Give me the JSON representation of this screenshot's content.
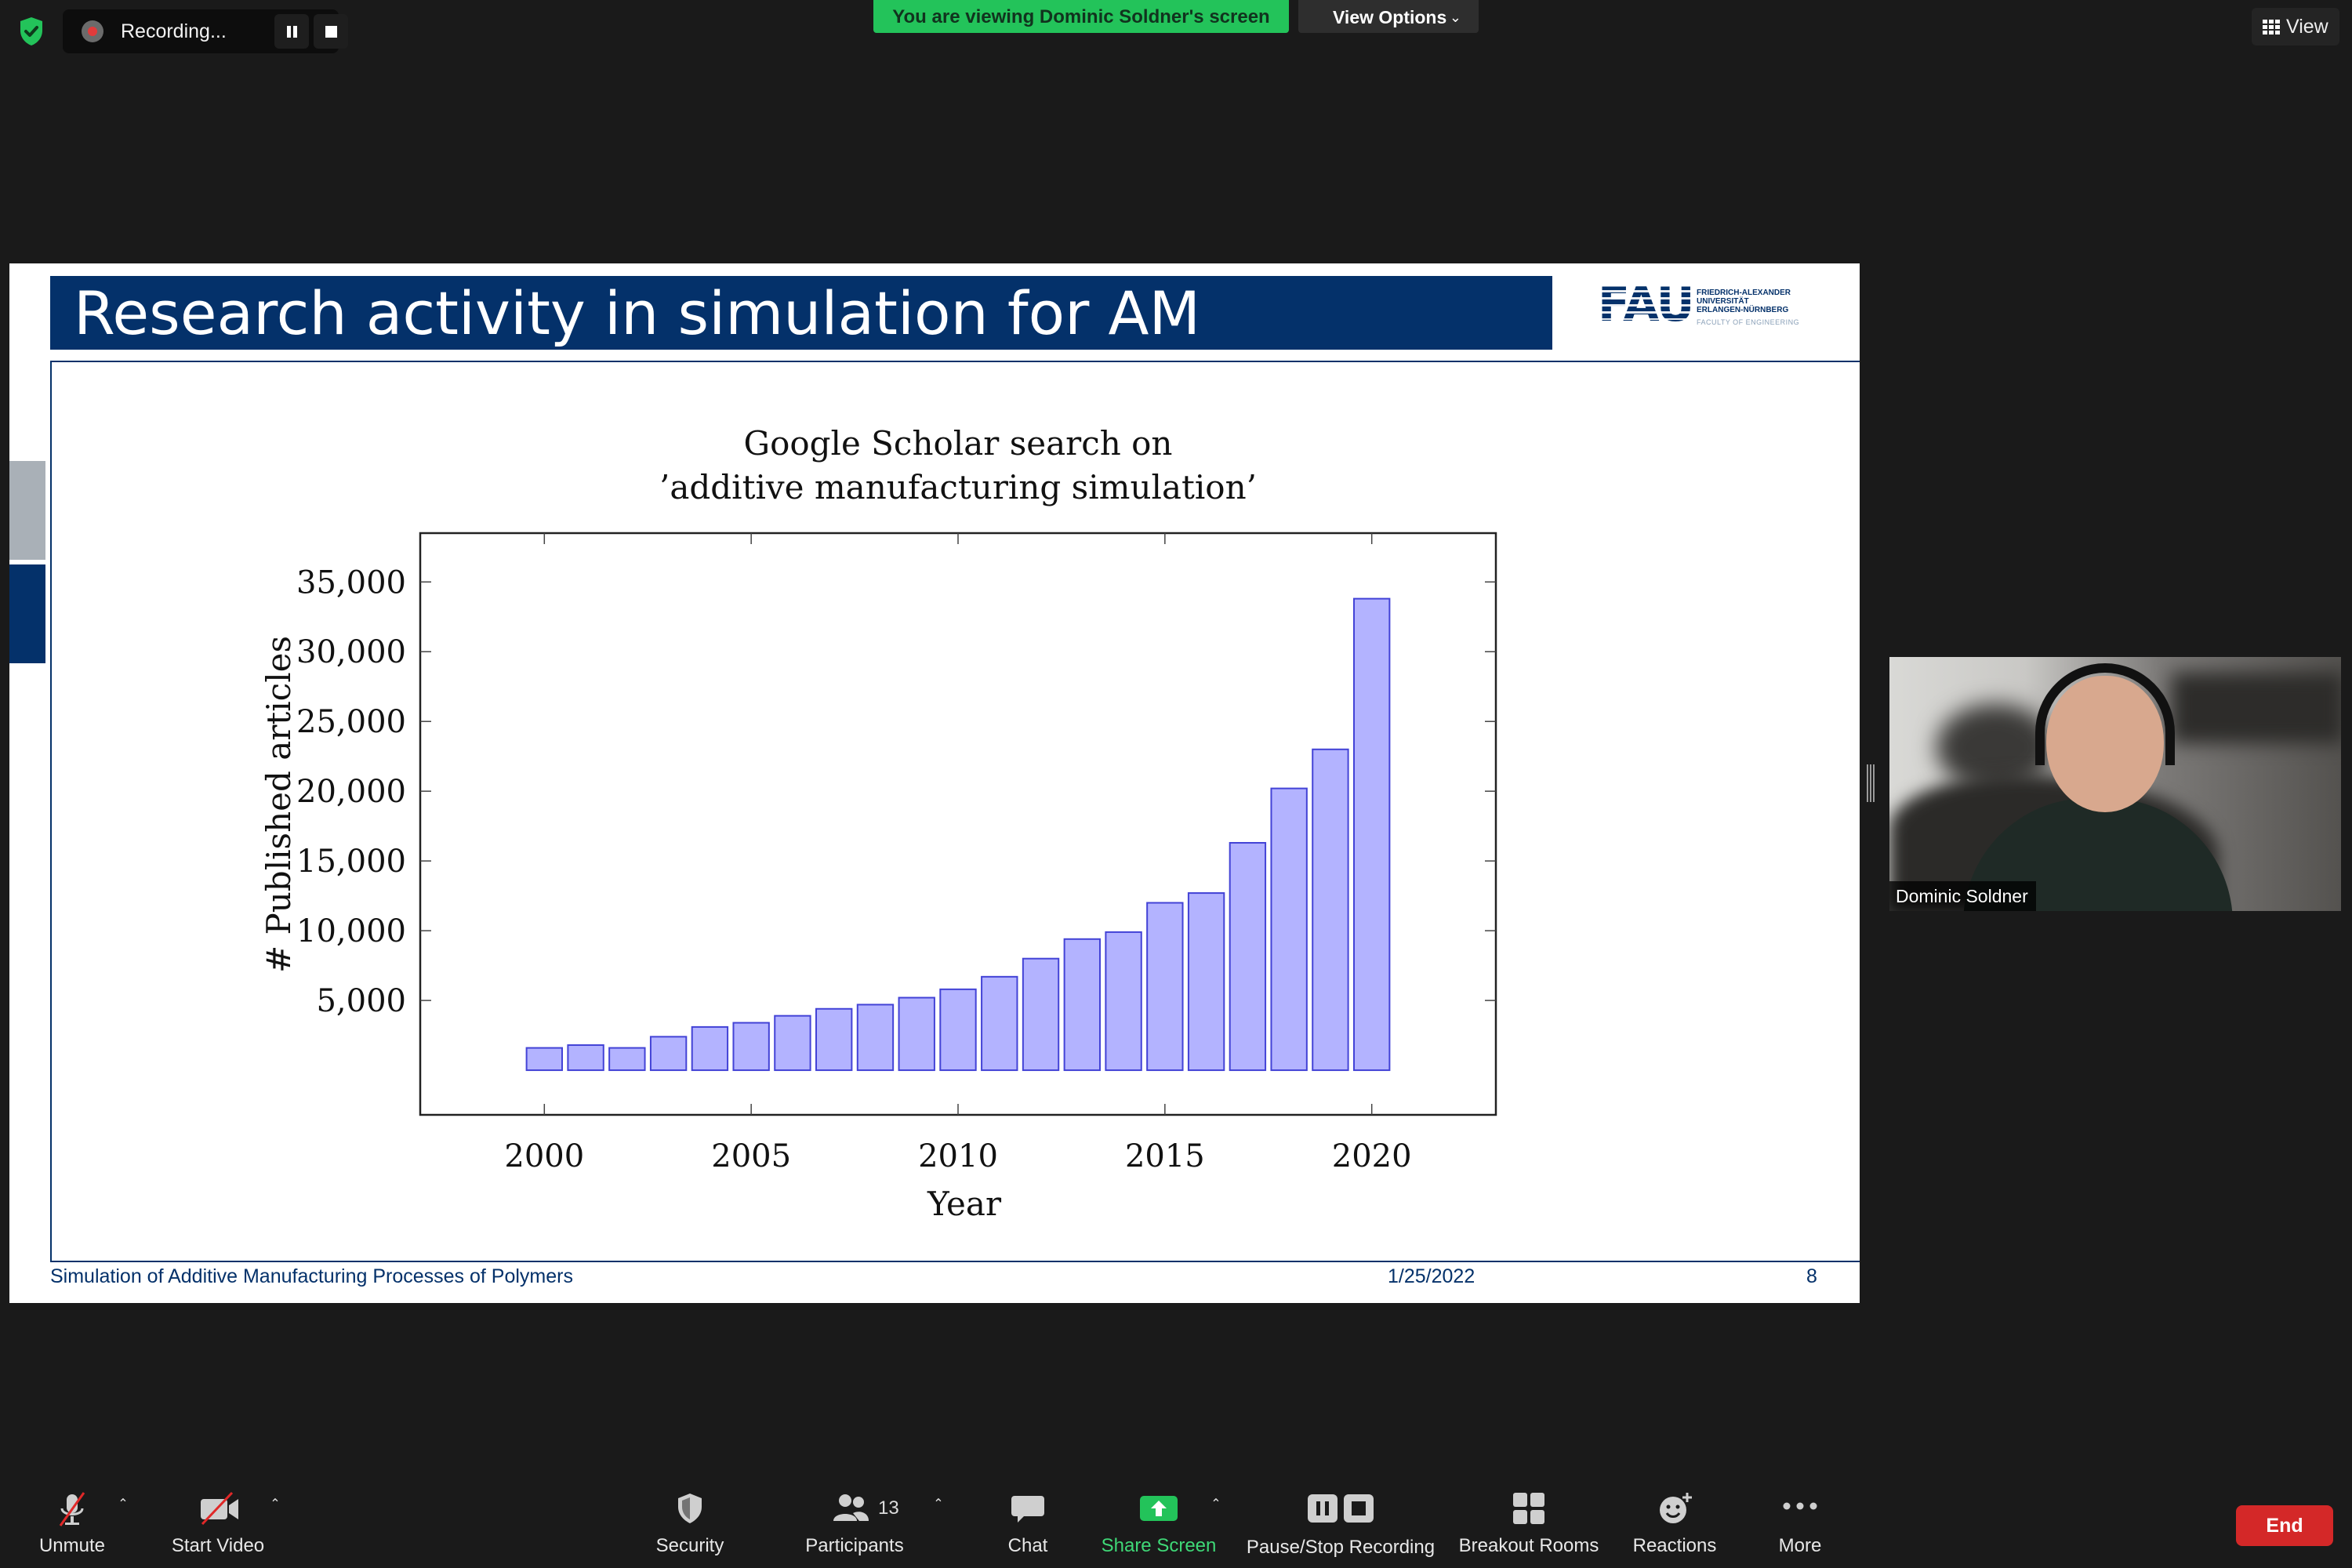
{
  "top_bar": {
    "recording_label": "Recording...",
    "viewing_banner": "You are viewing Dominic Soldner's screen",
    "view_options_label": "View Options",
    "view_label": "View"
  },
  "slide": {
    "title": "Research activity in simulation for AM",
    "logo": {
      "letters": "FAU",
      "line1": "FRIEDRICH-ALEXANDER",
      "line2": "UNIVERSITÄT",
      "line3": "ERLANGEN-NÜRNBERG",
      "faculty": "FACULTY OF ENGINEERING"
    },
    "footer": {
      "course": "Simulation of Additive Manufacturing Processes of Polymers",
      "date": "1/25/2022",
      "page": "8"
    }
  },
  "chart_data": {
    "type": "bar",
    "title": [
      "Google Scholar search on",
      "’additive manufacturing simulation’"
    ],
    "xlabel": "Year",
    "ylabel": "# Published articles",
    "x": [
      2000,
      2001,
      2002,
      2003,
      2004,
      2005,
      2006,
      2007,
      2008,
      2009,
      2010,
      2011,
      2012,
      2013,
      2014,
      2015,
      2016,
      2017,
      2018,
      2019,
      2020
    ],
    "values": [
      1600,
      1800,
      1600,
      2400,
      3100,
      3400,
      3900,
      4400,
      4700,
      5200,
      5800,
      6700,
      8000,
      9400,
      9900,
      12000,
      12700,
      16300,
      20200,
      23000,
      33800
    ],
    "x_ticks": [
      2000,
      2005,
      2010,
      2015,
      2020
    ],
    "x_tick_labels": [
      "2000",
      "2005",
      "2010",
      "2015",
      "2020"
    ],
    "y_ticks": [
      5000,
      10000,
      15000,
      20000,
      25000,
      30000,
      35000
    ],
    "y_tick_labels": [
      "5,000",
      "10,000",
      "15,000",
      "20,000",
      "25,000",
      "30,000",
      "35,000"
    ],
    "xlim": [
      1997,
      2023
    ],
    "ylim": [
      -3200,
      38500
    ],
    "bar_fill": "#b3b3ff",
    "bar_stroke": "#4343d6",
    "grid": false
  },
  "participant": {
    "name": "Dominic Soldner"
  },
  "toolbar": {
    "unmute": "Unmute",
    "start_video": "Start Video",
    "security": "Security",
    "participants": "Participants",
    "participants_count": "13",
    "chat": "Chat",
    "share_screen": "Share Screen",
    "pause_stop_recording": "Pause/Stop Recording",
    "breakout_rooms": "Breakout Rooms",
    "reactions": "Reactions",
    "more": "More",
    "end": "End"
  },
  "colors": {
    "slide_blue": "#04316a",
    "share_green": "#23c35a",
    "end_red": "#d42828",
    "banner_green": "#23c35a"
  },
  "icons": [
    "shield-check-icon",
    "recording-dot-icon",
    "pause-icon",
    "stop-icon",
    "grid-icon",
    "microphone-muted-icon",
    "video-camera-off-icon",
    "security-shield-icon",
    "participants-icon",
    "chat-bubble-icon",
    "share-screen-arrow-icon",
    "pause-recording-icon",
    "stop-recording-icon",
    "breakout-rooms-icon",
    "reactions-icon",
    "more-dots-icon",
    "caret-up-icon",
    "chevron-down-icon"
  ]
}
